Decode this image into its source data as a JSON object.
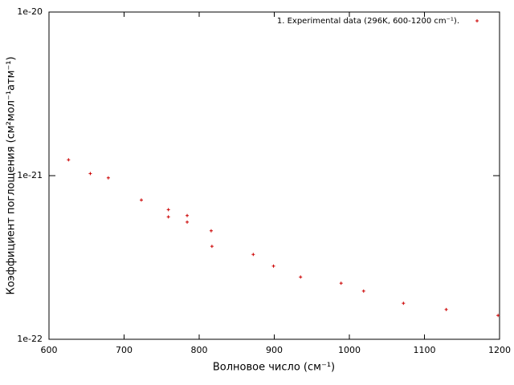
{
  "chart_data": {
    "type": "scatter",
    "x_label": "Волновое число (см⁻¹)",
    "y_label": "Коэффициент поглощения (см²мол⁻¹атм⁻¹)",
    "xlim": [
      600,
      1200
    ],
    "xticks": [
      600,
      700,
      800,
      900,
      1000,
      1100,
      1200
    ],
    "ylim": [
      1e-22,
      1e-20
    ],
    "yticks": [
      {
        "value": 1e-22,
        "label": "1e-22"
      },
      {
        "value": 1e-21,
        "label": "1e-21"
      },
      {
        "value": 1e-20,
        "label": "1e-20"
      }
    ],
    "log_y": true,
    "legend": "top-right",
    "series": [
      {
        "name": "1. Experimental data (296K, 600-1200 cm⁻¹).",
        "color": "#cc0000",
        "x": [
          626,
          655,
          679,
          723,
          759,
          759,
          784,
          784,
          816,
          817,
          872,
          899,
          935,
          989,
          1019,
          1072,
          1129,
          1198
        ],
        "values": [
          1.25e-21,
          1.03e-21,
          9.7e-22,
          7.1e-22,
          6.2e-22,
          5.6e-22,
          5.7e-22,
          5.2e-22,
          4.6e-22,
          3.7e-22,
          3.3e-22,
          2.8e-22,
          2.4e-22,
          2.2e-22,
          1.97e-22,
          1.66e-22,
          1.52e-22,
          1.4e-22
        ]
      }
    ]
  }
}
